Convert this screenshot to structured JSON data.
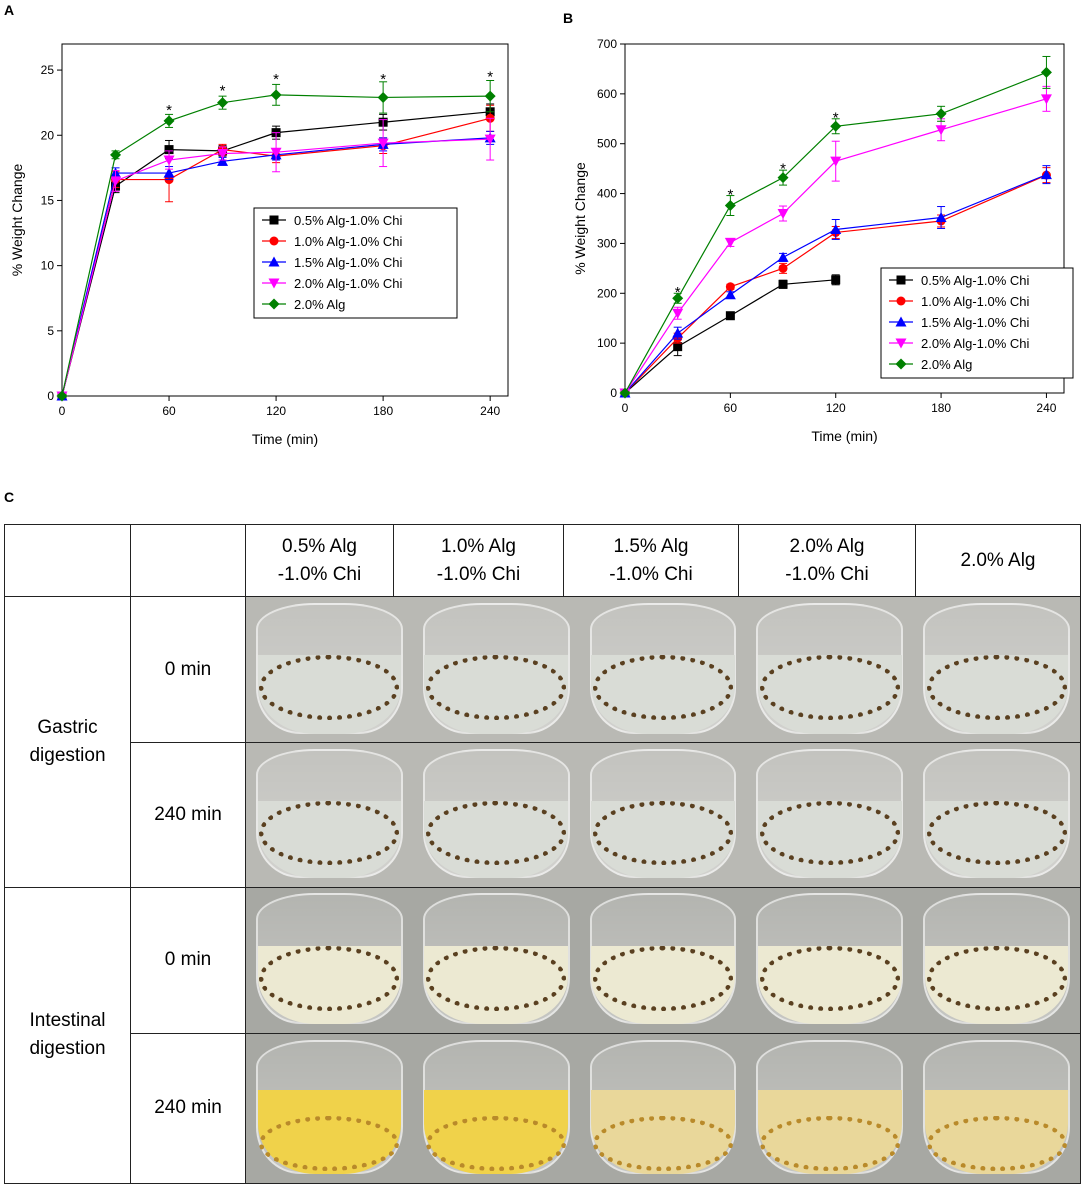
{
  "panel_labels": {
    "a": "A",
    "b": "B",
    "c": "C"
  },
  "colors": {
    "s0": "#000000",
    "s1": "#ff0000",
    "s2": "#0000ff",
    "s3": "#ff00ff",
    "s4": "#008000",
    "gastric_bg": "#b9b9b4",
    "gastric_liquid": "#d9dcd6",
    "intestinal_bg": "#a7a8a3",
    "intestinal_liquid": "#ece9d2",
    "yellow_liquid": "#f0d24a",
    "pale_yellow_liquid": "#e9d79a"
  },
  "chart_data": [
    {
      "type": "line",
      "panel": "A",
      "title": "",
      "xlabel": "Time (min)",
      "ylabel": "% Weight Change",
      "xlim": [
        0,
        250
      ],
      "ylim": [
        0,
        27
      ],
      "xticks": [
        0,
        60,
        120,
        180,
        240
      ],
      "yticks": [
        0,
        5,
        10,
        15,
        20,
        25
      ],
      "x": [
        0,
        30,
        60,
        90,
        120,
        180,
        240
      ],
      "legend_position": "center-right",
      "series": [
        {
          "name": "0.5% Alg-1.0% Chi",
          "marker": "square",
          "values": [
            0,
            16.1,
            18.9,
            18.8,
            20.2,
            21.0,
            21.8
          ],
          "errors": [
            0,
            0.5,
            0.7,
            0.4,
            0.5,
            0.6,
            0.6
          ]
        },
        {
          "name": "1.0% Alg-1.0% Chi",
          "marker": "circle",
          "values": [
            0,
            16.6,
            16.6,
            18.9,
            18.4,
            19.2,
            21.3
          ],
          "errors": [
            0,
            0.6,
            1.7,
            0.4,
            0.5,
            0.6,
            1.0
          ]
        },
        {
          "name": "1.5% Alg-1.0% Chi",
          "marker": "triangle-up",
          "values": [
            0,
            17.1,
            17.1,
            18.0,
            18.5,
            19.3,
            19.8
          ],
          "errors": [
            0,
            0.4,
            0.5,
            0.3,
            0.4,
            0.5,
            0.5
          ]
        },
        {
          "name": "2.0% Alg-1.0% Chi",
          "marker": "triangle-down",
          "values": [
            0,
            16.5,
            18.1,
            18.6,
            18.7,
            19.4,
            19.7
          ],
          "errors": [
            0,
            0.8,
            0.7,
            0.5,
            1.5,
            1.8,
            1.6
          ]
        },
        {
          "name": "2.0% Alg",
          "marker": "diamond",
          "values": [
            0,
            18.5,
            21.1,
            22.5,
            23.1,
            22.9,
            23.0
          ],
          "errors": [
            0,
            0.3,
            0.5,
            0.5,
            0.8,
            1.2,
            1.2
          ]
        }
      ],
      "annotations": [
        {
          "x": 60,
          "y": 22.0,
          "text": "*"
        },
        {
          "x": 90,
          "y": 23.5,
          "text": "*"
        },
        {
          "x": 120,
          "y": 24.4,
          "text": "*"
        },
        {
          "x": 180,
          "y": 24.4,
          "text": "*"
        },
        {
          "x": 240,
          "y": 24.6,
          "text": "*"
        }
      ]
    },
    {
      "type": "line",
      "panel": "B",
      "title": "",
      "xlabel": "Time (min)",
      "ylabel": "% Weight Change",
      "xlim": [
        0,
        250
      ],
      "ylim": [
        0,
        700
      ],
      "xticks": [
        0,
        60,
        120,
        180,
        240
      ],
      "yticks": [
        0,
        100,
        200,
        300,
        400,
        500,
        600,
        700
      ],
      "legend_position": "bottom-right",
      "series": [
        {
          "name": "0.5% Alg-1.0% Chi",
          "marker": "square",
          "x": [
            0,
            30,
            60,
            90,
            120
          ],
          "values": [
            0,
            93,
            155,
            218,
            227
          ],
          "errors": [
            0,
            18,
            5,
            8,
            10
          ]
        },
        {
          "name": "1.0% Alg-1.0% Chi",
          "marker": "circle",
          "x": [
            0,
            30,
            60,
            90,
            120,
            180,
            240
          ],
          "values": [
            0,
            110,
            213,
            250,
            322,
            345,
            437
          ],
          "errors": [
            0,
            10,
            5,
            10,
            12,
            12,
            15
          ]
        },
        {
          "name": "1.5% Alg-1.0% Chi",
          "marker": "triangle-up",
          "x": [
            0,
            30,
            60,
            90,
            120,
            180,
            240
          ],
          "values": [
            0,
            120,
            197,
            272,
            328,
            352,
            438
          ],
          "errors": [
            0,
            12,
            6,
            8,
            20,
            22,
            18
          ]
        },
        {
          "name": "2.0% Alg-1.0% Chi",
          "marker": "triangle-down",
          "x": [
            0,
            30,
            60,
            90,
            120,
            180,
            240
          ],
          "values": [
            0,
            160,
            302,
            360,
            465,
            528,
            590
          ],
          "errors": [
            0,
            12,
            8,
            15,
            40,
            22,
            25
          ]
        },
        {
          "name": "2.0% Alg",
          "marker": "diamond",
          "x": [
            0,
            30,
            60,
            90,
            120,
            180,
            240
          ],
          "values": [
            0,
            190,
            376,
            432,
            535,
            560,
            643
          ],
          "errors": [
            0,
            10,
            20,
            15,
            15,
            15,
            32
          ]
        }
      ],
      "annotations": [
        {
          "x": 30,
          "y": 205,
          "text": "*"
        },
        {
          "x": 60,
          "y": 400,
          "text": "*"
        },
        {
          "x": 90,
          "y": 452,
          "text": "*"
        },
        {
          "x": 120,
          "y": 555,
          "text": "*"
        }
      ]
    }
  ],
  "table": {
    "col_headers": [
      [
        "0.5% Alg",
        "-1.0% Chi"
      ],
      [
        "1.0% Alg",
        "-1.0% Chi"
      ],
      [
        "1.5% Alg",
        "-1.0% Chi"
      ],
      [
        "2.0% Alg",
        "-1.0% Chi"
      ],
      [
        "2.0% Alg"
      ]
    ],
    "groups": [
      {
        "label_lines": [
          "Gastric",
          "digestion"
        ],
        "times": [
          "0 min",
          "240 min"
        ]
      },
      {
        "label_lines": [
          "Intestinal",
          "digestion"
        ],
        "times": [
          "0 min",
          "240 min"
        ]
      }
    ]
  }
}
